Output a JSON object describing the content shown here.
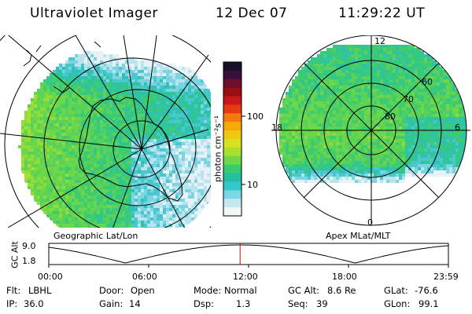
{
  "header": {
    "title": "Ultraviolet Imager",
    "date": "12 Dec 07",
    "time": "11:29:22 UT"
  },
  "colorbar": {
    "unit_label": "photon cm⁻²s⁻¹",
    "ticks": [
      "100",
      "10"
    ],
    "colors_top_to_bottom": [
      "#1a0f2b",
      "#3a0f3e",
      "#6b0f2a",
      "#9a1010",
      "#c81818",
      "#e63a10",
      "#f27a10",
      "#f7a808",
      "#f0c810",
      "#d8e020",
      "#a8e030",
      "#6cd848",
      "#38cc70",
      "#22bfa0",
      "#36c8c8",
      "#78d8e4",
      "#c4e8ee",
      "#f2f6f8"
    ]
  },
  "left_panel": {
    "caption": "Geographic Lat/Lon"
  },
  "right_panel": {
    "caption": "Apex MLat/MLT",
    "mlt_labels": {
      "top": "12",
      "left": "18",
      "right": "6",
      "bottom": "0"
    },
    "lat_labels": [
      "60",
      "70",
      "80"
    ]
  },
  "orbit": {
    "axis_label": "GC Alt",
    "y_ticks": [
      "9.0",
      "1.8"
    ],
    "x_ticks": [
      "00:00",
      "06:00",
      "12:00",
      "18:00",
      "23:59"
    ],
    "current_marker_hour": 11.49,
    "marker_color": "#dd0000"
  },
  "info": {
    "row1": [
      {
        "label": "Flt:",
        "value": "LBHL"
      },
      {
        "label": "Door:",
        "value": "Open"
      },
      {
        "label": "Mode:",
        "value": "Normal"
      },
      {
        "label": "GC Alt:",
        "value": "8.6 Re"
      },
      {
        "label": "GLat:",
        "value": "-76.6"
      }
    ],
    "row2": [
      {
        "label": "IP:",
        "value": "36.0"
      },
      {
        "label": "Gain:",
        "value": "14"
      },
      {
        "label": "Dsp:",
        "value": "1.3"
      },
      {
        "label": "Seq:",
        "value": "39"
      },
      {
        "label": "GLon:",
        "value": "99.1"
      }
    ]
  }
}
